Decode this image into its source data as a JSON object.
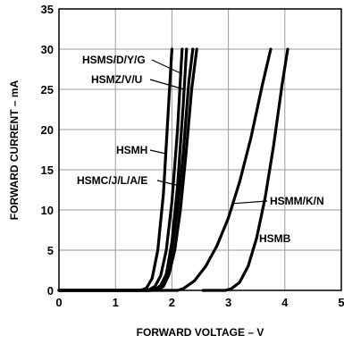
{
  "chart_data": {
    "type": "line",
    "xlabel": "FORWARD VOLTAGE – V",
    "ylabel": "FORWARD CURRENT – mA",
    "xlim": [
      0,
      5
    ],
    "ylim": [
      0,
      35
    ],
    "xticks": [
      "0",
      "1",
      "2",
      "3",
      "4",
      "5"
    ],
    "yticks": [
      "0",
      "5",
      "10",
      "15",
      "20",
      "25",
      "30",
      "35"
    ],
    "grid": true,
    "series": [
      {
        "name": "HSMS/D/Y/G",
        "x": [
          0,
          1.5,
          1.6,
          1.7,
          1.8,
          1.9,
          2.0,
          2.1,
          2.18
        ],
        "y": [
          0,
          0,
          0.1,
          0.5,
          1.8,
          5,
          11,
          20,
          30
        ]
      },
      {
        "name": "HSMZ/V/U",
        "x": [
          0,
          1.6,
          1.7,
          1.8,
          1.9,
          2.0,
          2.1,
          2.2,
          2.26
        ],
        "y": [
          0,
          0,
          0.1,
          0.5,
          2,
          6,
          13,
          23,
          30
        ]
      },
      {
        "name": "HSMH",
        "x": [
          0,
          1.45,
          1.55,
          1.65,
          1.75,
          1.85,
          1.95,
          2.0
        ],
        "y": [
          0,
          0,
          0.3,
          1.5,
          5,
          12,
          24,
          30
        ]
      },
      {
        "name": "HSMC/J/L/A/E",
        "x": [
          0,
          1.6,
          1.7,
          1.8,
          1.9,
          2.0,
          2.1,
          2.2,
          2.3,
          2.37
        ],
        "y": [
          0,
          0,
          0.1,
          0.6,
          2,
          5,
          10,
          17,
          26,
          30
        ]
      },
      {
        "name": "HSMC/J/L/A/E",
        "x": [
          0,
          1.65,
          1.75,
          1.85,
          1.95,
          2.05,
          2.15,
          2.25,
          2.35,
          2.44
        ],
        "y": [
          0,
          0,
          0.1,
          0.5,
          2,
          5,
          10,
          17,
          25,
          30
        ]
      },
      {
        "name": "HSMM/K/N",
        "x": [
          0,
          2.1,
          2.2,
          2.4,
          2.6,
          2.8,
          3.0,
          3.2,
          3.4,
          3.6,
          3.75
        ],
        "y": [
          0,
          0,
          0.2,
          1.2,
          3,
          5.6,
          9,
          13.5,
          19,
          25.5,
          30
        ]
      },
      {
        "name": "HSMB",
        "x": [
          2.55,
          2.95,
          3.05,
          3.2,
          3.35,
          3.5,
          3.65,
          3.8,
          3.95,
          4.05
        ],
        "y": [
          0,
          0,
          0.2,
          1.0,
          3,
          6.5,
          11.5,
          18,
          25.5,
          30
        ]
      }
    ],
    "annotations": [
      {
        "text": "HSMS/D/Y/G",
        "series": 0
      },
      {
        "text": "HSMZ/V/U",
        "series": 1
      },
      {
        "text": "HSMH",
        "series": 2
      },
      {
        "text": "HSMC/J/L/A/E",
        "series": 3
      },
      {
        "text": "HSMM/K/N",
        "series": 5
      },
      {
        "text": "HSMB",
        "series": 6
      }
    ]
  }
}
